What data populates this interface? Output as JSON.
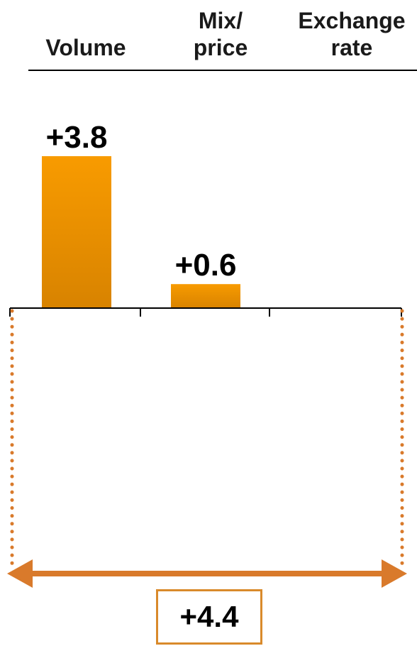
{
  "chart_data": {
    "type": "bar",
    "categories": [
      {
        "line1": "",
        "line2": "Volume"
      },
      {
        "line1": "Mix/",
        "line2": "price"
      },
      {
        "line1": "Exchange",
        "line2": "rate"
      }
    ],
    "values": [
      3.8,
      0.6,
      null
    ],
    "data_labels": [
      "+3.8",
      "+0.6",
      ""
    ],
    "total_label": "+4.4",
    "total_value": 4.4,
    "ylim": [
      0,
      3.8
    ],
    "grid": false,
    "legend": "none",
    "bar_color_top": "#f89b00",
    "bar_color_bottom": "#d88300",
    "bracket_color": "#d97a2b"
  }
}
